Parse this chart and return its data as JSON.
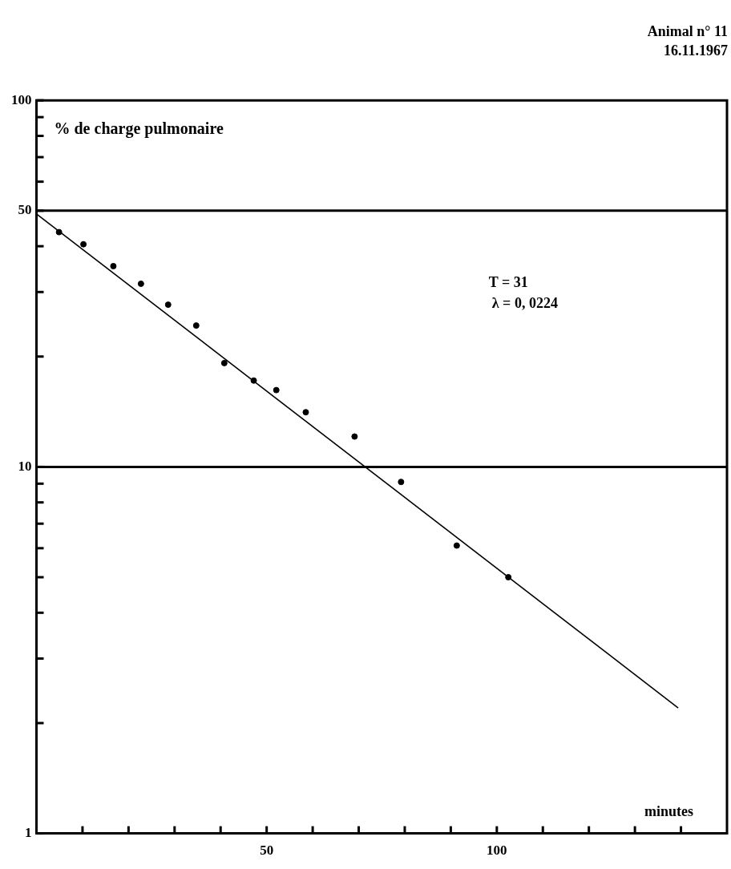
{
  "chart_data": {
    "type": "scatter",
    "title": "Animal n° 11",
    "subtitle": "16.11.1967",
    "xlabel": "minutes",
    "ylabel": "% de charge pulmonaire",
    "annotations": [
      "T = 31",
      "λ = 0, 0224"
    ],
    "log": "y",
    "marker": "circle",
    "xlim": [
      0,
      150
    ],
    "xticks": [
      {
        "value": 10,
        "label": null
      },
      {
        "value": 20,
        "label": null
      },
      {
        "value": 30,
        "label": null
      },
      {
        "value": 40,
        "label": null
      },
      50,
      {
        "value": 60,
        "label": null
      },
      {
        "value": 70,
        "label": null
      },
      {
        "value": 80,
        "label": null
      },
      {
        "value": 90,
        "label": null
      },
      100,
      {
        "value": 110,
        "label": null
      },
      {
        "value": 120,
        "label": null
      },
      {
        "value": 130,
        "label": null
      },
      {
        "value": 140,
        "label": null
      }
    ],
    "ylim": [
      1,
      100
    ],
    "yticks": [
      1,
      {
        "value": 2,
        "label": null
      },
      {
        "value": 3,
        "label": null
      },
      {
        "value": 4,
        "label": null
      },
      {
        "value": 5,
        "label": null
      },
      {
        "value": 6,
        "label": null
      },
      {
        "value": 7,
        "label": null
      },
      {
        "value": 8,
        "label": null
      },
      {
        "value": 9,
        "label": null
      },
      10,
      {
        "value": 20,
        "label": null
      },
      {
        "value": 30,
        "label": null
      },
      {
        "value": 40,
        "label": null
      },
      50,
      {
        "value": 60,
        "label": null
      },
      {
        "value": 70,
        "label": null
      },
      {
        "value": 80,
        "label": null
      },
      {
        "value": 90,
        "label": null
      },
      100
    ],
    "ref_lines": [
      {
        "axis": "y",
        "value": 50,
        "label": null,
        "color": "#000000"
      },
      {
        "axis": "y",
        "value": 10,
        "label": null,
        "color": "#000000"
      }
    ],
    "series": [
      {
        "color": "#000000",
        "x": [
          4.9,
          10.2,
          16.7,
          22.7,
          28.6,
          34.7,
          40.8,
          47.2,
          52.1,
          58.5,
          69.1,
          79.2,
          91.3,
          102.5
        ],
        "values": [
          43.7,
          40.5,
          35.3,
          31.6,
          27.7,
          24.3,
          19.2,
          17.2,
          16.2,
          14.1,
          12.1,
          9.1,
          6.1,
          5.0
        ]
      },
      {
        "type": "line",
        "color": "#000000",
        "marker": "none",
        "x": [
          0,
          139.4
        ],
        "values": [
          49,
          2.2
        ]
      }
    ]
  }
}
